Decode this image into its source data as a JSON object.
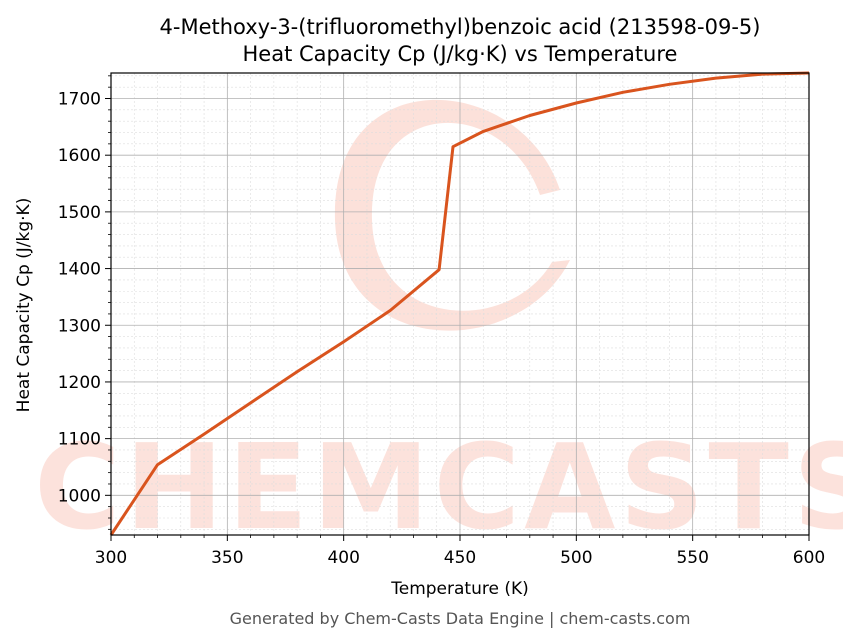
{
  "title_line1": "4-Methoxy-3-(trifluoromethyl)benzoic acid (213598-09-5)",
  "title_line2": "Heat Capacity Cp (J/kg·K) vs Temperature",
  "footer": "Generated by Chem-Casts Data Engine | chem-casts.com",
  "watermark": "CHEMCASTS",
  "colors": {
    "line": "#d9541e",
    "watermark": "#fcdcd4"
  },
  "chart_data": {
    "type": "line",
    "title": "4-Methoxy-3-(trifluoromethyl)benzoic acid (213598-09-5)\nHeat Capacity Cp (J/kg·K) vs Temperature",
    "xlabel": "Temperature (K)",
    "ylabel": "Heat Capacity Cp (J/kg·K)",
    "xlim": [
      300,
      600
    ],
    "ylim": [
      930,
      1745
    ],
    "xticks": [
      300,
      350,
      400,
      450,
      500,
      550,
      600
    ],
    "yticks": [
      1000,
      1100,
      1200,
      1300,
      1400,
      1500,
      1600,
      1700
    ],
    "grid": true,
    "series": [
      {
        "x": [
          300,
          320,
          340,
          360,
          380,
          400,
          420,
          441,
          447,
          460,
          480,
          500,
          520,
          540,
          560,
          580,
          600
        ],
        "y": [
          930,
          1054,
          1108,
          1163,
          1218,
          1271,
          1326,
          1398,
          1615,
          1642,
          1670,
          1692,
          1711,
          1725,
          1736,
          1743,
          1745
        ]
      }
    ]
  }
}
